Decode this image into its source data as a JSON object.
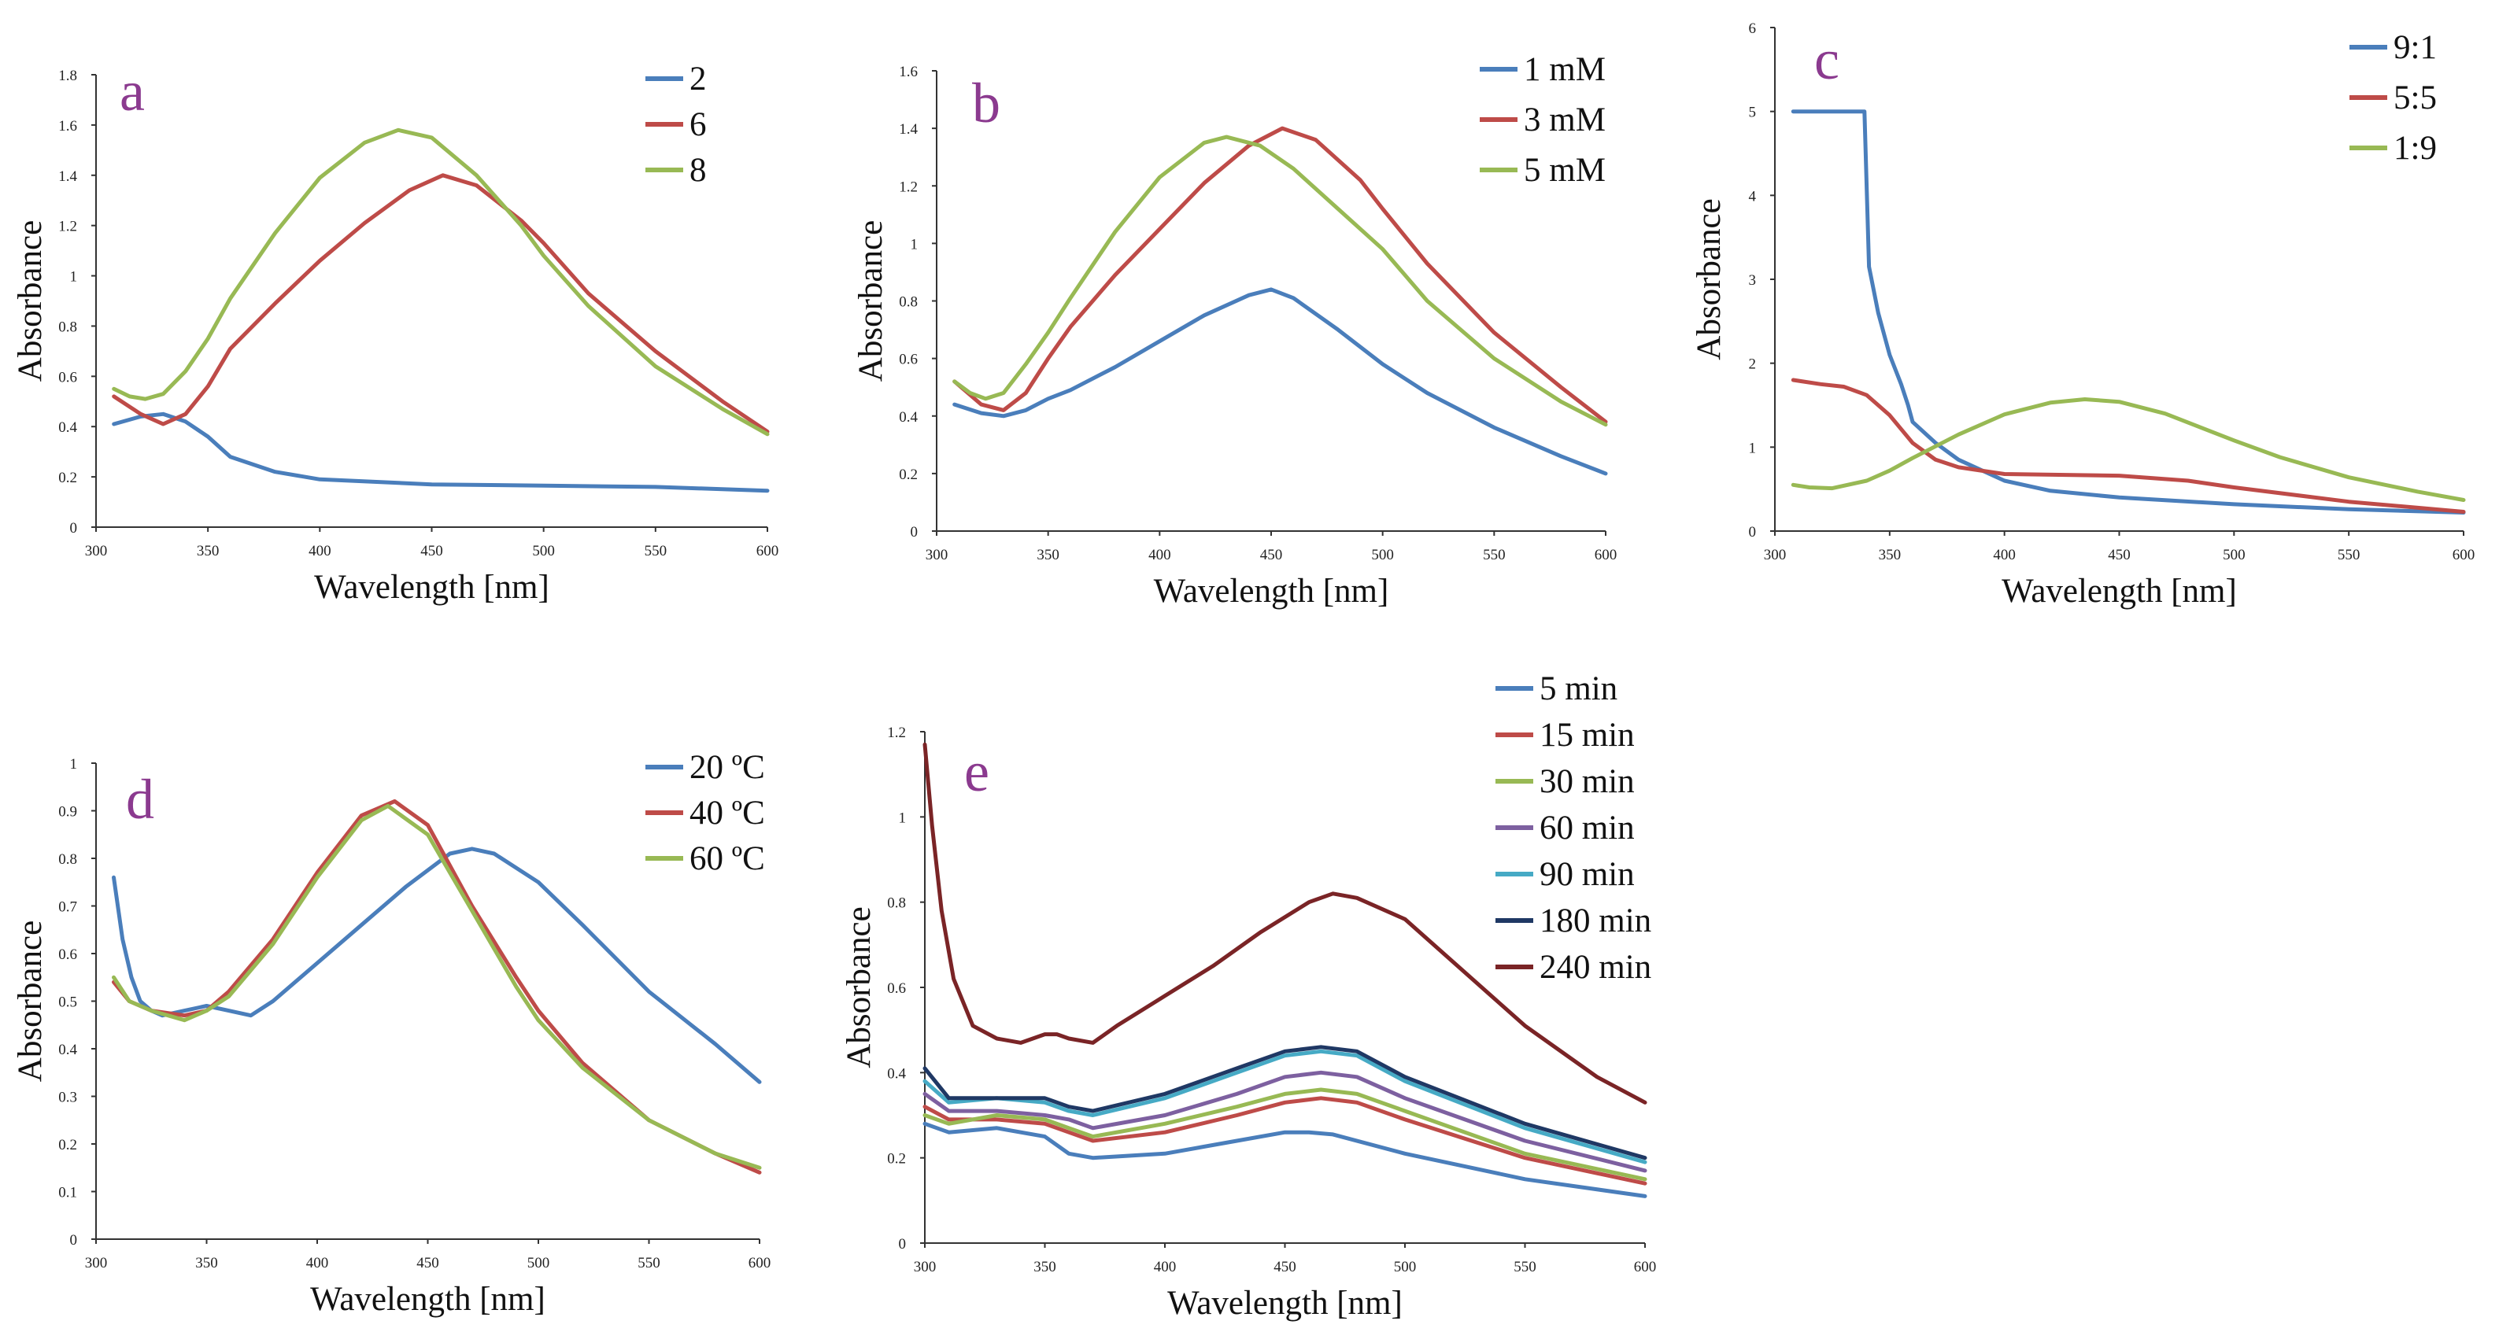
{
  "chart_data": [
    {
      "type": "line",
      "panel_label": "a",
      "xlabel": "Wavelength [nm]",
      "ylabel": "Absorbance",
      "xlim": [
        300,
        600
      ],
      "ylim": [
        0,
        1.8
      ],
      "xticks": [
        300,
        350,
        400,
        450,
        500,
        550,
        600
      ],
      "yticks": [
        0,
        0.2,
        0.4,
        0.6,
        0.8,
        1,
        1.2,
        1.4,
        1.6,
        1.8
      ],
      "legend": "top-right",
      "series": [
        {
          "name": "2",
          "color": "#4a7ebb",
          "x": [
            308,
            320,
            330,
            340,
            350,
            360,
            380,
            400,
            450,
            500,
            550,
            600
          ],
          "y": [
            0.41,
            0.44,
            0.45,
            0.42,
            0.36,
            0.28,
            0.22,
            0.19,
            0.17,
            0.165,
            0.16,
            0.145
          ]
        },
        {
          "name": "6",
          "color": "#be4b48",
          "x": [
            308,
            320,
            330,
            340,
            350,
            360,
            380,
            400,
            420,
            440,
            455,
            470,
            490,
            500,
            520,
            550,
            580,
            600
          ],
          "y": [
            0.52,
            0.45,
            0.41,
            0.45,
            0.56,
            0.71,
            0.89,
            1.06,
            1.21,
            1.34,
            1.4,
            1.36,
            1.22,
            1.13,
            0.93,
            0.7,
            0.5,
            0.38
          ]
        },
        {
          "name": "8",
          "color": "#98b954",
          "x": [
            308,
            315,
            322,
            330,
            340,
            350,
            360,
            380,
            400,
            420,
            435,
            450,
            470,
            490,
            500,
            520,
            550,
            580,
            600
          ],
          "y": [
            0.55,
            0.52,
            0.51,
            0.53,
            0.62,
            0.75,
            0.91,
            1.17,
            1.39,
            1.53,
            1.58,
            1.55,
            1.4,
            1.2,
            1.08,
            0.88,
            0.64,
            0.47,
            0.37
          ]
        }
      ]
    },
    {
      "type": "line",
      "panel_label": "b",
      "xlabel": "Wavelength [nm]",
      "ylabel": "Absorbance",
      "xlim": [
        300,
        600
      ],
      "ylim": [
        0,
        1.6
      ],
      "xticks": [
        300,
        350,
        400,
        450,
        500,
        550,
        600
      ],
      "yticks": [
        0,
        0.2,
        0.4,
        0.6,
        0.8,
        1,
        1.2,
        1.4,
        1.6
      ],
      "legend": "top-right",
      "series": [
        {
          "name": "1 mM",
          "color": "#4a7ebb",
          "x": [
            308,
            320,
            330,
            340,
            350,
            360,
            380,
            400,
            420,
            440,
            450,
            460,
            480,
            500,
            520,
            550,
            580,
            600
          ],
          "y": [
            0.44,
            0.41,
            0.4,
            0.42,
            0.46,
            0.49,
            0.57,
            0.66,
            0.75,
            0.82,
            0.84,
            0.81,
            0.7,
            0.58,
            0.48,
            0.36,
            0.26,
            0.2
          ]
        },
        {
          "name": "3 mM",
          "color": "#be4b48",
          "x": [
            308,
            320,
            330,
            340,
            350,
            360,
            380,
            400,
            420,
            440,
            455,
            470,
            490,
            500,
            520,
            550,
            580,
            600
          ],
          "y": [
            0.52,
            0.44,
            0.42,
            0.48,
            0.6,
            0.71,
            0.89,
            1.05,
            1.21,
            1.34,
            1.4,
            1.36,
            1.22,
            1.12,
            0.93,
            0.69,
            0.5,
            0.38
          ]
        },
        {
          "name": "5 mM",
          "color": "#98b954",
          "x": [
            308,
            315,
            322,
            330,
            340,
            350,
            360,
            380,
            400,
            420,
            430,
            445,
            460,
            480,
            500,
            520,
            550,
            580,
            600
          ],
          "y": [
            0.52,
            0.48,
            0.46,
            0.48,
            0.58,
            0.69,
            0.81,
            1.04,
            1.23,
            1.35,
            1.37,
            1.34,
            1.26,
            1.12,
            0.98,
            0.8,
            0.6,
            0.45,
            0.37
          ]
        }
      ]
    },
    {
      "type": "line",
      "panel_label": "c",
      "xlabel": "Wavelength [nm]",
      "ylabel": "Absorbance",
      "xlim": [
        300,
        600
      ],
      "ylim": [
        0,
        6
      ],
      "xticks": [
        300,
        350,
        400,
        450,
        500,
        550,
        600
      ],
      "yticks": [
        0,
        1,
        2,
        3,
        4,
        5,
        6
      ],
      "legend": "top-right",
      "series": [
        {
          "name": "9:1",
          "color": "#4a7ebb",
          "x": [
            308,
            320,
            330,
            339,
            341,
            345,
            350,
            355,
            358,
            360,
            370,
            380,
            400,
            420,
            450,
            500,
            550,
            600
          ],
          "y": [
            5.0,
            5.0,
            5.0,
            5.0,
            3.15,
            2.6,
            2.1,
            1.75,
            1.5,
            1.3,
            1.05,
            0.85,
            0.6,
            0.48,
            0.4,
            0.32,
            0.26,
            0.22
          ]
        },
        {
          "name": "5:5",
          "color": "#be4b48",
          "x": [
            308,
            320,
            330,
            340,
            350,
            360,
            370,
            380,
            400,
            450,
            480,
            500,
            550,
            600
          ],
          "y": [
            1.8,
            1.75,
            1.72,
            1.62,
            1.38,
            1.05,
            0.85,
            0.76,
            0.68,
            0.66,
            0.6,
            0.52,
            0.35,
            0.23
          ]
        },
        {
          "name": "1:9",
          "color": "#98b954",
          "x": [
            308,
            315,
            325,
            340,
            350,
            360,
            380,
            400,
            420,
            435,
            450,
            470,
            500,
            520,
            550,
            580,
            600
          ],
          "y": [
            0.55,
            0.52,
            0.51,
            0.6,
            0.72,
            0.87,
            1.15,
            1.39,
            1.53,
            1.57,
            1.54,
            1.4,
            1.08,
            0.88,
            0.64,
            0.47,
            0.37
          ]
        }
      ]
    },
    {
      "type": "line",
      "panel_label": "d",
      "xlabel": "Wavelength [nm]",
      "ylabel": "Absorbance",
      "xlim": [
        300,
        600
      ],
      "ylim": [
        0,
        1
      ],
      "xticks": [
        300,
        350,
        400,
        450,
        500,
        550,
        600
      ],
      "yticks": [
        0,
        0.1,
        0.2,
        0.3,
        0.4,
        0.5,
        0.6,
        0.7,
        0.8,
        0.9,
        1
      ],
      "legend": "top-right",
      "series": [
        {
          "name": "20 ºC",
          "color": "#4a7ebb",
          "x": [
            308,
            312,
            316,
            320,
            325,
            330,
            340,
            350,
            360,
            370,
            380,
            400,
            420,
            440,
            460,
            470,
            480,
            500,
            520,
            550,
            580,
            600
          ],
          "y": [
            0.76,
            0.63,
            0.55,
            0.5,
            0.48,
            0.47,
            0.48,
            0.49,
            0.48,
            0.47,
            0.5,
            0.58,
            0.66,
            0.74,
            0.81,
            0.82,
            0.81,
            0.75,
            0.66,
            0.52,
            0.41,
            0.33
          ]
        },
        {
          "name": "40 ºC",
          "color": "#be4b48",
          "x": [
            308,
            315,
            325,
            340,
            350,
            360,
            380,
            400,
            420,
            435,
            450,
            470,
            490,
            500,
            520,
            550,
            580,
            600
          ],
          "y": [
            0.54,
            0.5,
            0.48,
            0.47,
            0.48,
            0.52,
            0.63,
            0.77,
            0.89,
            0.92,
            0.87,
            0.7,
            0.55,
            0.48,
            0.37,
            0.25,
            0.18,
            0.14
          ]
        },
        {
          "name": "60 ºC",
          "color": "#98b954",
          "x": [
            308,
            315,
            325,
            340,
            350,
            360,
            380,
            400,
            420,
            432,
            450,
            470,
            490,
            500,
            520,
            550,
            580,
            600
          ],
          "y": [
            0.55,
            0.5,
            0.48,
            0.46,
            0.48,
            0.51,
            0.62,
            0.76,
            0.88,
            0.91,
            0.85,
            0.69,
            0.53,
            0.46,
            0.36,
            0.25,
            0.18,
            0.15
          ]
        }
      ]
    },
    {
      "type": "line",
      "panel_label": "e",
      "xlabel": "Wavelength [nm]",
      "ylabel": "Absorbance",
      "xlim": [
        300,
        600
      ],
      "ylim": [
        0,
        1.2
      ],
      "xticks": [
        300,
        350,
        400,
        450,
        500,
        550,
        600
      ],
      "yticks": [
        0,
        0.2,
        0.4,
        0.6,
        0.8,
        1,
        1.2
      ],
      "legend": "top-right",
      "series": [
        {
          "name": "5 min",
          "color": "#4a7ebb",
          "x": [
            300,
            310,
            330,
            350,
            360,
            370,
            400,
            430,
            450,
            460,
            470,
            500,
            550,
            600
          ],
          "y": [
            0.28,
            0.26,
            0.27,
            0.25,
            0.21,
            0.2,
            0.21,
            0.24,
            0.26,
            0.26,
            0.255,
            0.21,
            0.15,
            0.11
          ]
        },
        {
          "name": "15 min",
          "color": "#be4b48",
          "x": [
            300,
            310,
            330,
            350,
            360,
            370,
            400,
            430,
            450,
            465,
            480,
            500,
            550,
            600
          ],
          "y": [
            0.32,
            0.29,
            0.29,
            0.28,
            0.26,
            0.24,
            0.26,
            0.3,
            0.33,
            0.34,
            0.33,
            0.29,
            0.2,
            0.14
          ]
        },
        {
          "name": "30 min",
          "color": "#98b954",
          "x": [
            300,
            310,
            330,
            350,
            360,
            370,
            400,
            430,
            450,
            465,
            480,
            500,
            550,
            600
          ],
          "y": [
            0.3,
            0.28,
            0.3,
            0.29,
            0.27,
            0.25,
            0.28,
            0.32,
            0.35,
            0.36,
            0.35,
            0.31,
            0.21,
            0.15
          ]
        },
        {
          "name": "60 min",
          "color": "#7d60a0",
          "x": [
            300,
            310,
            330,
            350,
            360,
            370,
            400,
            430,
            450,
            465,
            480,
            500,
            550,
            600
          ],
          "y": [
            0.35,
            0.31,
            0.31,
            0.3,
            0.29,
            0.27,
            0.3,
            0.35,
            0.39,
            0.4,
            0.39,
            0.34,
            0.24,
            0.17
          ]
        },
        {
          "name": "90 min",
          "color": "#46aac5",
          "x": [
            300,
            310,
            330,
            350,
            360,
            370,
            400,
            430,
            450,
            465,
            480,
            500,
            550,
            600
          ],
          "y": [
            0.38,
            0.33,
            0.34,
            0.33,
            0.31,
            0.3,
            0.34,
            0.4,
            0.44,
            0.45,
            0.44,
            0.38,
            0.27,
            0.19
          ]
        },
        {
          "name": "180 min",
          "color": "#1f3864",
          "x": [
            300,
            310,
            330,
            350,
            360,
            370,
            400,
            430,
            450,
            465,
            480,
            500,
            550,
            600
          ],
          "y": [
            0.41,
            0.34,
            0.34,
            0.34,
            0.32,
            0.31,
            0.35,
            0.41,
            0.45,
            0.46,
            0.45,
            0.39,
            0.28,
            0.2
          ]
        },
        {
          "name": "240 min",
          "color": "#7a2426",
          "x": [
            300,
            303,
            307,
            312,
            320,
            330,
            340,
            350,
            355,
            360,
            370,
            380,
            400,
            420,
            440,
            460,
            470,
            480,
            500,
            520,
            550,
            580,
            600
          ],
          "y": [
            1.17,
            0.98,
            0.78,
            0.62,
            0.51,
            0.48,
            0.47,
            0.49,
            0.49,
            0.48,
            0.47,
            0.51,
            0.58,
            0.65,
            0.73,
            0.8,
            0.82,
            0.81,
            0.76,
            0.66,
            0.51,
            0.39,
            0.33
          ]
        }
      ]
    }
  ]
}
